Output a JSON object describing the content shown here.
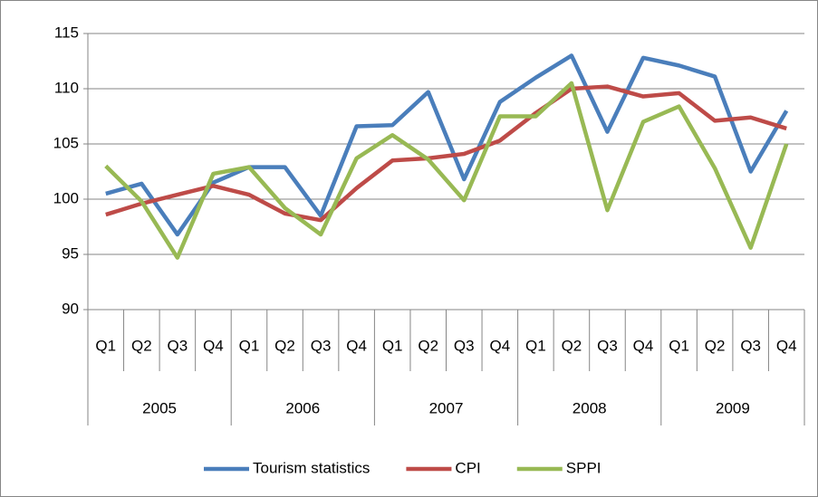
{
  "chart_data": {
    "type": "line",
    "categories": [
      "Q1",
      "Q2",
      "Q3",
      "Q4",
      "Q1",
      "Q2",
      "Q3",
      "Q4",
      "Q1",
      "Q2",
      "Q3",
      "Q4",
      "Q1",
      "Q2",
      "Q3",
      "Q4",
      "Q1",
      "Q2",
      "Q3",
      "Q4"
    ],
    "category_groups": [
      "2005",
      "2006",
      "2007",
      "2008",
      "2009"
    ],
    "series": [
      {
        "name": "Tourism statistics",
        "color": "#4a7ebb",
        "values": [
          100.5,
          101.4,
          96.8,
          101.5,
          102.9,
          102.9,
          98.5,
          106.6,
          106.7,
          109.7,
          101.8,
          108.8,
          111.0,
          113.0,
          106.1,
          112.8,
          112.1,
          111.1,
          102.5,
          108.0
        ]
      },
      {
        "name": "CPI",
        "color": "#be4b48",
        "values": [
          98.6,
          99.6,
          100.4,
          101.2,
          100.4,
          98.7,
          98.1,
          101.0,
          103.5,
          103.7,
          104.1,
          105.3,
          107.8,
          110.0,
          110.2,
          109.3,
          109.6,
          107.1,
          107.4,
          106.4
        ]
      },
      {
        "name": "SPPI",
        "color": "#98b954",
        "values": [
          103.0,
          99.8,
          94.7,
          102.3,
          102.9,
          99.2,
          96.8,
          103.7,
          105.8,
          103.6,
          99.9,
          107.5,
          107.5,
          110.5,
          99.0,
          107.0,
          108.4,
          102.8,
          95.6,
          105.0
        ]
      }
    ],
    "ylim": [
      90,
      115
    ],
    "yticks": [
      90,
      95,
      100,
      105,
      110,
      115
    ],
    "grid": true,
    "legend": "bottom"
  }
}
